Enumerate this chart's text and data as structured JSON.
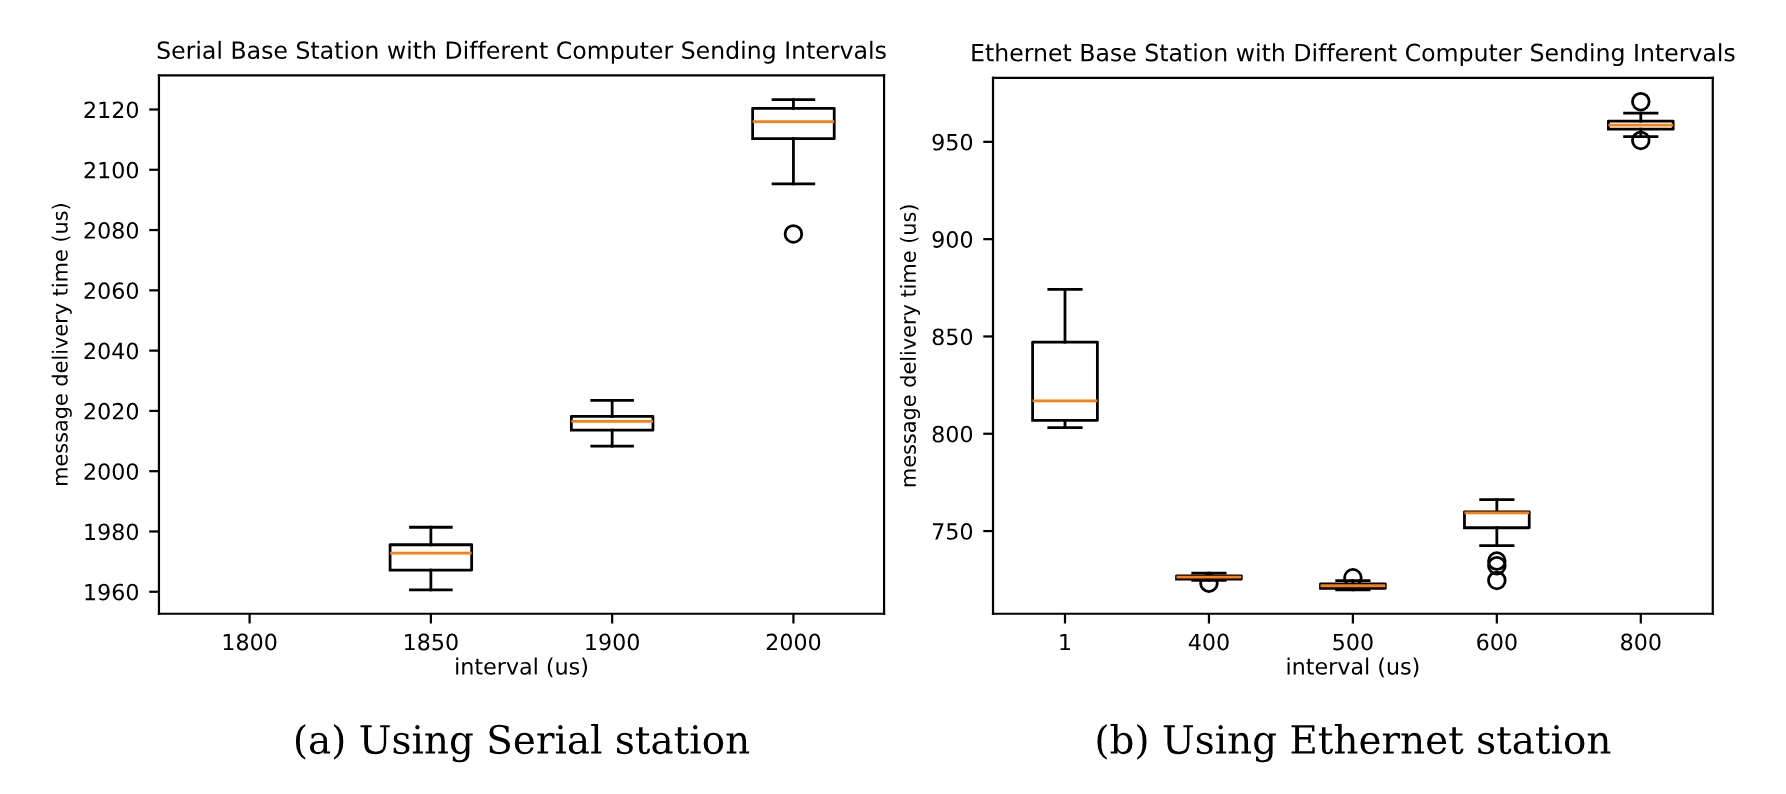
{
  "chart_data": [
    {
      "type": "box",
      "title": "Serial Base Station with Different Computer Sending Intervals",
      "xlabel": "interval (us)",
      "ylabel": "message delivery time (us)",
      "categories": [
        "1800",
        "1850",
        "1900",
        "2000"
      ],
      "boxes": [
        null,
        {
          "low": 1960.6,
          "q1": 1967.2,
          "median": 1972.8,
          "q3": 1975.6,
          "high": 1981.4
        },
        {
          "low": 2008.3,
          "q1": 2013.6,
          "median": 2016.5,
          "q3": 2018.2,
          "high": 2023.5
        },
        {
          "low": 2095.3,
          "q1": 2110.3,
          "median": 2116,
          "q3": 2120.4,
          "high": 2123.3,
          "outliers": [
            2078.7
          ]
        }
      ],
      "ylim": [
        1952.7,
        2131.3
      ],
      "yticks": [
        1960,
        1980,
        2000,
        2020,
        2040,
        2060,
        2080,
        2100,
        2120
      ],
      "grid": false,
      "legend": false,
      "annotations": [
        "(a) Using Serial station"
      ]
    },
    {
      "type": "box",
      "title": "Ethernet Base Station with Different Computer Sending Intervals",
      "xlabel": "interval (us)",
      "ylabel": "message delivery time (us)",
      "categories": [
        "1",
        "400",
        "500",
        "600",
        "800"
      ],
      "boxes": [
        {
          "low": 803.2,
          "q1": 806.9,
          "median": 816.9,
          "q3": 847.1,
          "high": 874.2
        },
        {
          "low": 724.6,
          "q1": 725.3,
          "median": 726.3,
          "q3": 727,
          "high": 728.4,
          "outliers": [
            723.2
          ]
        },
        {
          "low": 719.8,
          "q1": 720.5,
          "median": 721.9,
          "q3": 722.9,
          "high": 724.5,
          "outliers": [
            726
          ]
        },
        {
          "low": 742.5,
          "q1": 751.7,
          "median": 759.3,
          "q3": 759.9,
          "high": 766.1,
          "outliers": [
            734.6,
            732.2,
            724.6
          ]
        },
        {
          "low": 952.7,
          "q1": 956.5,
          "median": 958.6,
          "q3": 960.6,
          "high": 964.8,
          "outliers": [
            970.6,
            950.7
          ]
        }
      ],
      "ylim": [
        707.5,
        982.9
      ],
      "yticks": [
        750,
        800,
        850,
        900,
        950
      ],
      "grid": false,
      "legend": false,
      "annotations": [
        "(b) Using Ethernet station"
      ]
    }
  ]
}
